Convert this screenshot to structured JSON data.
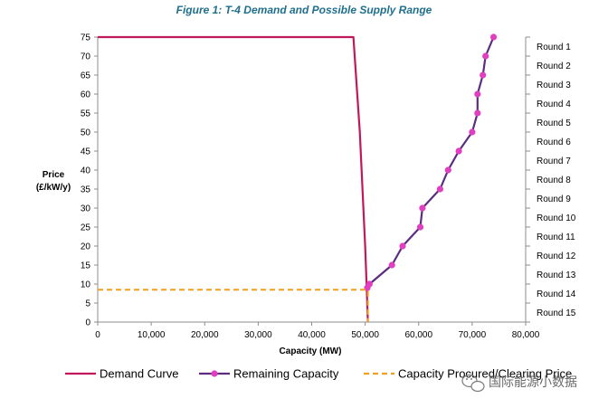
{
  "chart_data": {
    "type": "line",
    "title": "Figure 1: T-4 Demand and Possible Supply Range",
    "xlabel": "Capacity (MW)",
    "ylabel_lines": [
      "Price",
      "(£/kW/y)"
    ],
    "xlim": [
      0,
      80000
    ],
    "ylim": [
      0,
      75
    ],
    "x_ticks": [
      0,
      10000,
      20000,
      30000,
      40000,
      50000,
      60000,
      70000,
      80000
    ],
    "x_tick_labels": [
      "0",
      "10,000",
      "20,000",
      "30,000",
      "40,000",
      "50,000",
      "60,000",
      "70,000",
      "80,000"
    ],
    "y_ticks": [
      0,
      5,
      10,
      15,
      20,
      25,
      30,
      35,
      40,
      45,
      50,
      55,
      60,
      65,
      70,
      75
    ],
    "y_tick_labels": [
      "0",
      "5",
      "10",
      "15",
      "20",
      "25",
      "30",
      "35",
      "40",
      "45",
      "50",
      "55",
      "60",
      "65",
      "70",
      "75"
    ],
    "right_axis_labels": [
      "Round 1",
      "Round 2",
      "Round 3",
      "Round 4",
      "Round 5",
      "Round 6",
      "Round 7",
      "Round 8",
      "Round 9",
      "Round 10",
      "Round 11",
      "Round 12",
      "Round 13",
      "Round 14",
      "Round 15"
    ],
    "series": [
      {
        "name": "Demand Curve",
        "color": "#c0185a",
        "style": "solid",
        "markers": false,
        "x": [
          0,
          47800,
          49000,
          50000,
          50300,
          50500
        ],
        "y": [
          75,
          75,
          50,
          20,
          8.5,
          0
        ]
      },
      {
        "name": "Remaining Capacity",
        "color": "#5b2c7f",
        "marker_color": "#e040c0",
        "style": "solid",
        "markers": true,
        "x": [
          74000,
          72500,
          72000,
          71000,
          71000,
          70000,
          67500,
          65500,
          64000,
          60700,
          60300,
          57000,
          55000,
          50800,
          50400
        ],
        "y": [
          75,
          70,
          65,
          60,
          55,
          50,
          45,
          40,
          35,
          30,
          25,
          20,
          15,
          10,
          9
        ]
      },
      {
        "name": "Capacity Procured/Clearing Price",
        "color": "#f0a020",
        "style": "dashed",
        "markers": false,
        "x": [
          0,
          50500,
          50500
        ],
        "y": [
          8.5,
          8.5,
          0
        ]
      }
    ],
    "legend": [
      {
        "label": "Demand Curve",
        "color": "#c0185a",
        "kind": "line"
      },
      {
        "label": "Remaining Capacity",
        "color": "#5b2c7f",
        "marker_color": "#e040c0",
        "kind": "line-marker"
      },
      {
        "label": "Capacity Procured/Clearing Price",
        "color": "#f0a020",
        "kind": "dashed"
      }
    ],
    "legend_position": "bottom"
  },
  "watermark": {
    "text": "国际能源小数据",
    "icon": "wechat-icon"
  }
}
